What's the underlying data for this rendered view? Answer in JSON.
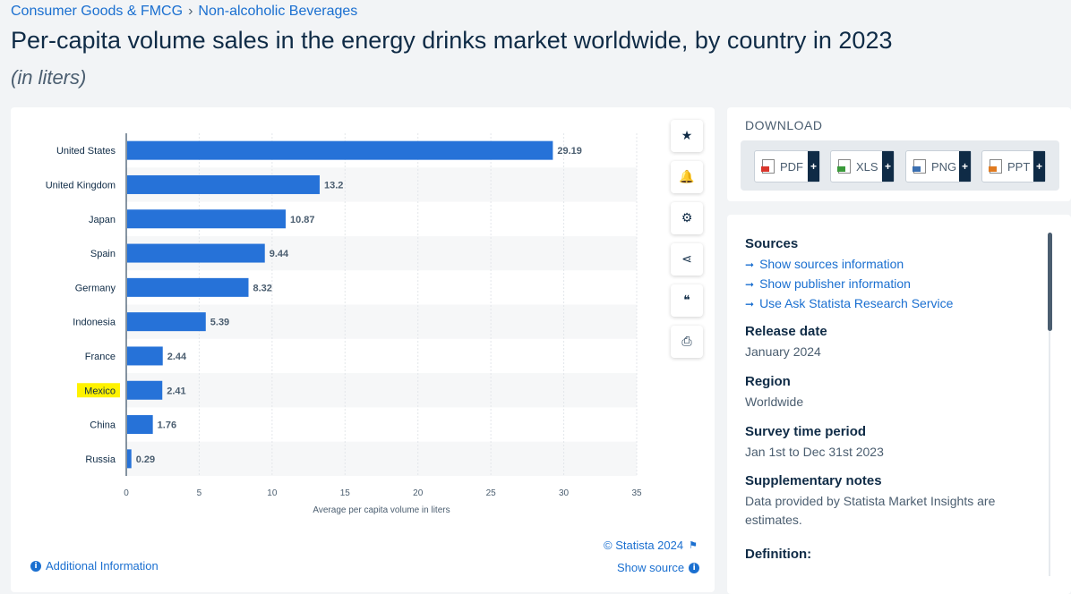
{
  "breadcrumb": {
    "category": "Consumer Goods & FMCG",
    "subcategory": "Non-alcoholic Beverages"
  },
  "header": {
    "title": "Per-capita volume sales in the energy drinks market worldwide, by country in 2023",
    "subtitle": "(in liters)"
  },
  "chart_data": {
    "type": "bar",
    "orientation": "horizontal",
    "categories": [
      "United States",
      "United Kingdom",
      "Japan",
      "Spain",
      "Germany",
      "Indonesia",
      "France",
      "Mexico",
      "China",
      "Russia"
    ],
    "values": [
      29.19,
      13.2,
      10.87,
      9.44,
      8.32,
      5.39,
      2.44,
      2.41,
      1.76,
      0.29
    ],
    "value_labels": [
      "29.19",
      "13.2",
      "10.87",
      "9.44",
      "8.32",
      "5.39",
      "2.44",
      "2.41",
      "1.76",
      "0.29"
    ],
    "highlighted_category": "Mexico",
    "xlabel": "Average per capita volume in liters",
    "ylabel": "",
    "xlim": [
      0,
      35
    ],
    "x_ticks": [
      "0",
      "5",
      "10",
      "15",
      "20",
      "25",
      "30",
      "35"
    ],
    "grid": true,
    "bar_color": "#2672d8",
    "highlight_color": "#fff200"
  },
  "toolbar": {
    "items": [
      {
        "name": "favorite-button",
        "icon": "star-icon",
        "glyph": "★"
      },
      {
        "name": "notify-button",
        "icon": "bell-icon",
        "glyph": "🔔"
      },
      {
        "name": "settings-button",
        "icon": "gear-icon",
        "glyph": "⚙"
      },
      {
        "name": "share-button",
        "icon": "share-icon",
        "glyph": "⋖"
      },
      {
        "name": "cite-button",
        "icon": "quote-icon",
        "glyph": "❝"
      },
      {
        "name": "print-button",
        "icon": "printer-icon",
        "glyph": "⎙"
      }
    ]
  },
  "chart_footer": {
    "copyright": "© Statista 2024",
    "additional_info": "Additional Information",
    "show_source": "Show source"
  },
  "download": {
    "title": "DOWNLOAD",
    "buttons": [
      {
        "label": "PDF",
        "color": "#d9352c"
      },
      {
        "label": "XLS",
        "color": "#3a9a3a"
      },
      {
        "label": "PNG",
        "color": "#3a6fb0"
      },
      {
        "label": "PPT",
        "color": "#e07a20"
      }
    ],
    "plus": "+"
  },
  "info": {
    "sources_heading": "Sources",
    "source_links": [
      "Show sources information",
      "Show publisher information",
      "Use Ask Statista Research Service"
    ],
    "release_heading": "Release date",
    "release_value": "January 2024",
    "region_heading": "Region",
    "region_value": "Worldwide",
    "survey_heading": "Survey time period",
    "survey_value": "Jan 1st to Dec 31st 2023",
    "notes_heading": "Supplementary notes",
    "notes_value": "Data provided by Statista Market Insights are estimates.",
    "definition_heading": "Definition:"
  }
}
